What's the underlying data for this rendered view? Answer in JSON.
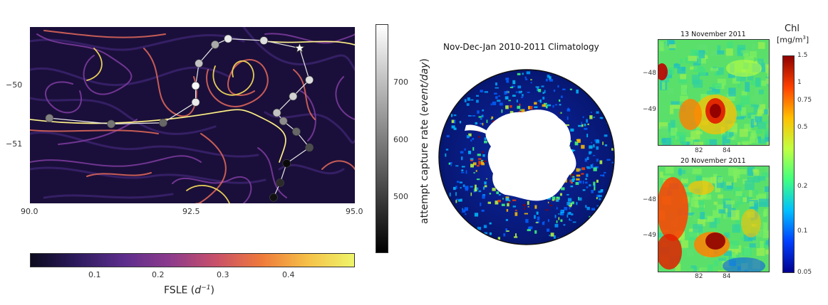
{
  "colors": {
    "fsle_colormap": [
      "#0c0a1e",
      "#2d1b5e",
      "#5c2d8c",
      "#8c3b8c",
      "#c8506a",
      "#ef7a3b",
      "#f5c148",
      "#eef56a"
    ],
    "capture_colormap": [
      "#000000",
      "#555555",
      "#aaaaaa",
      "#ffffff"
    ],
    "chl_colormap": [
      "#00008f",
      "#0040ff",
      "#00c0ff",
      "#40ff80",
      "#c0ff40",
      "#ffc000",
      "#ff4000",
      "#8f0000"
    ],
    "track_line": "#e8e8e8",
    "land": "#ffffff"
  },
  "chart_data": [
    {
      "type": "scatter",
      "description_label": "trajectory",
      "x_ticks": [
        "90.0",
        "92.5",
        "95.0"
      ],
      "y_ticks": [
        "−50",
        "−51"
      ],
      "xlim": [
        90.0,
        95.0
      ],
      "ylim": [
        -52.0,
        -49.0
      ],
      "points": [
        {
          "x": 90.3,
          "y": -50.55,
          "rate": 600
        },
        {
          "x": 91.25,
          "y": -50.65,
          "rate": 580
        },
        {
          "x": 92.05,
          "y": -50.63,
          "rate": 560
        },
        {
          "x": 92.55,
          "y": -50.28,
          "rate": 760
        },
        {
          "x": 92.55,
          "y": -50.0,
          "rate": 780
        },
        {
          "x": 92.6,
          "y": -49.62,
          "rate": 700
        },
        {
          "x": 92.85,
          "y": -49.3,
          "rate": 660
        },
        {
          "x": 93.05,
          "y": -49.2,
          "rate": 760
        },
        {
          "x": 93.6,
          "y": -49.23,
          "rate": 740
        },
        {
          "x": 94.15,
          "y": -49.36,
          "star": true
        },
        {
          "x": 94.3,
          "y": -49.9,
          "rate": 740
        },
        {
          "x": 94.05,
          "y": -50.18,
          "rate": 720
        },
        {
          "x": 93.8,
          "y": -50.46,
          "rate": 700
        },
        {
          "x": 93.9,
          "y": -50.6,
          "rate": 620
        },
        {
          "x": 94.1,
          "y": -50.78,
          "rate": 560
        },
        {
          "x": 94.3,
          "y": -51.05,
          "rate": 520
        },
        {
          "x": 93.95,
          "y": -51.32,
          "rate": 420
        },
        {
          "x": 93.85,
          "y": -51.65,
          "rate": 470
        },
        {
          "x": 93.75,
          "y": -51.9,
          "rate": 430
        }
      ]
    },
    {
      "type": "heatmap",
      "colorbar": "fsle",
      "xlabel": "FSLE (d⁻¹)",
      "xlabel_main": "FSLE (",
      "xlabel_unit": "d",
      "xlabel_exp": "−1",
      "xlabel_close": ")",
      "ticks": [
        "0.1",
        "0.2",
        "0.3",
        "0.4"
      ],
      "tick_values": [
        0.1,
        0.2,
        0.3,
        0.4
      ],
      "range": [
        0.02,
        0.49
      ]
    },
    {
      "type": "heatmap",
      "colorbar": "capture_rate",
      "ylabel": "attempt capture rate (event/day)",
      "ylabel_plain": "attempt capture rate (",
      "ylabel_italic": "event/day",
      "ylabel_close": ")",
      "ticks": [
        "500",
        "600",
        "700"
      ],
      "tick_values": [
        500,
        600,
        700
      ],
      "range": [
        405,
        790
      ]
    },
    {
      "type": "heatmap",
      "title": "Nov-Dec-Jan 2010-2011 Climatology",
      "projection": "polar"
    },
    {
      "type": "heatmap",
      "title": "13 November 2011",
      "x_ticks": [
        "82",
        "84"
      ],
      "y_ticks": [
        "−48",
        "−49"
      ]
    },
    {
      "type": "heatmap",
      "title": "20 November 2011",
      "x_ticks": [
        "82",
        "84"
      ],
      "y_ticks": [
        "−48",
        "−49"
      ]
    },
    {
      "type": "heatmap",
      "colorbar": "chl",
      "title": "Chl",
      "unit": "[mg/m³]",
      "unit_main": "[mg/m",
      "unit_exp": "3",
      "unit_close": "]",
      "ticks": [
        "1.5",
        "1",
        "0.75",
        "0.5",
        "0.2",
        "0.1",
        "0.05"
      ],
      "tick_values": [
        1.5,
        1,
        0.75,
        0.5,
        0.2,
        0.1,
        0.05
      ]
    }
  ]
}
